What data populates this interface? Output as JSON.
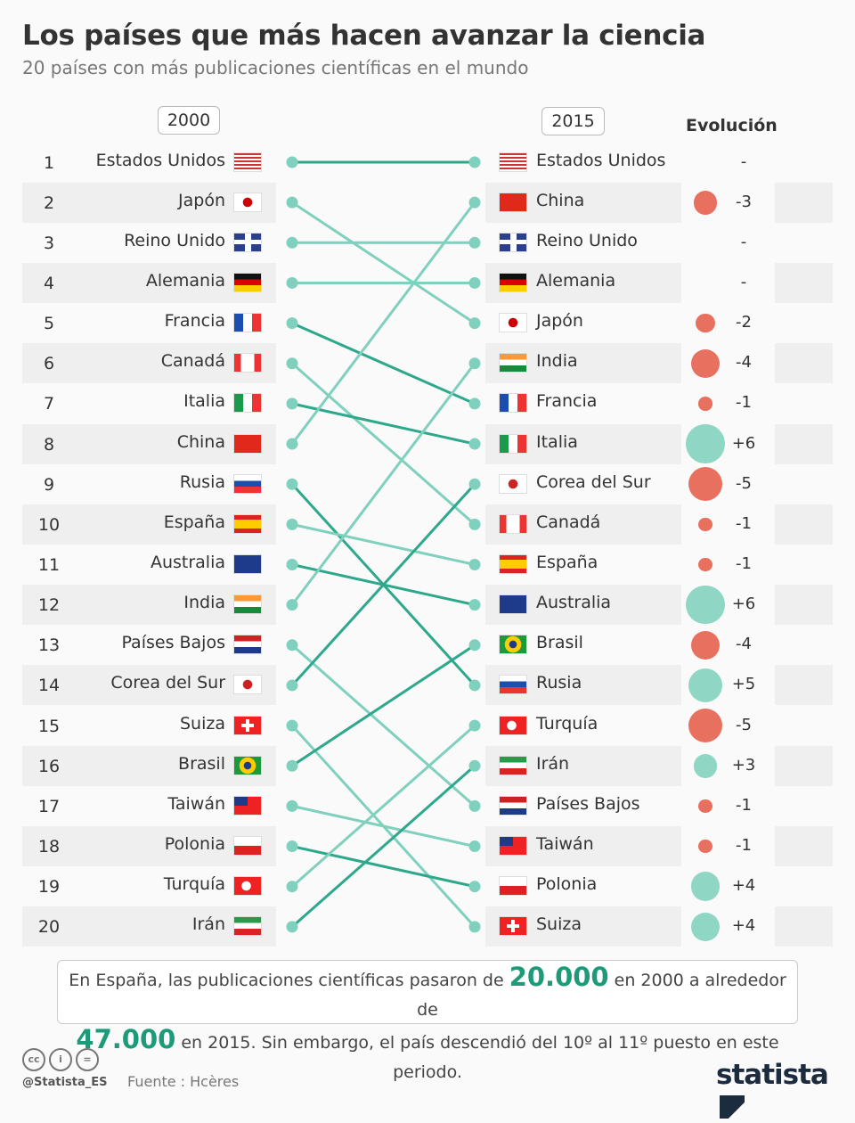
{
  "header": {
    "title": "Los países que más hacen avanzar la ciencia",
    "subtitle": "20 países con más publicaciones científicas en el mundo"
  },
  "columns": {
    "year_left": "2000",
    "year_right": "2015",
    "evolution": "Evolución"
  },
  "colors": {
    "line_dark": "#2ea88b",
    "line_light": "#7fd0bd",
    "drop": "#e8705f",
    "rise": "#8fd6c4"
  },
  "chart_data": {
    "type": "slope",
    "title": "Los países que más hacen avanzar la ciencia",
    "ranks": [
      "1",
      "2",
      "3",
      "4",
      "5",
      "6",
      "7",
      "8",
      "9",
      "10",
      "11",
      "12",
      "13",
      "14",
      "15",
      "16",
      "17",
      "18",
      "19",
      "20"
    ],
    "ranking_2000": [
      "Estados Unidos",
      "Japón",
      "Reino Unido",
      "Alemania",
      "Francia",
      "Canadá",
      "Italia",
      "China",
      "Rusia",
      "España",
      "Australia",
      "India",
      "Países Bajos",
      "Corea del Sur",
      "Suiza",
      "Brasil",
      "Taiwán",
      "Polonia",
      "Turquía",
      "Irán"
    ],
    "ranking_2015": [
      "Estados Unidos",
      "China",
      "Reino Unido",
      "Alemania",
      "Japón",
      "India",
      "Francia",
      "Italia",
      "Corea del Sur",
      "Canadá",
      "España",
      "Australia",
      "Brasil",
      "Rusia",
      "Turquía",
      "Irán",
      "Países Bajos",
      "Taiwán",
      "Polonia",
      "Suiza"
    ],
    "evolution_2015": [
      "-",
      "-3",
      "-",
      "-",
      "-2",
      "-4",
      "-1",
      "+6",
      "-5",
      "-1",
      "-1",
      "+6",
      "-4",
      "+5",
      "-5",
      "+3",
      "-1",
      "-1",
      "+4",
      "+4"
    ]
  },
  "note": {
    "part1": "En España, las publicaciones científicas pasaron de ",
    "v1": "20.000",
    "part2": " en 2000 a alrededor de ",
    "v2": "47.000",
    "part3": " en 2015. Sin embargo, el país descendió del 10º al 11º puesto en este periodo."
  },
  "footer": {
    "handle": "@Statista_ES",
    "source": "Fuente : Hcères",
    "logo": "statista",
    "license_icons": [
      "cc-icon",
      "by-icon",
      "nd-icon"
    ]
  }
}
